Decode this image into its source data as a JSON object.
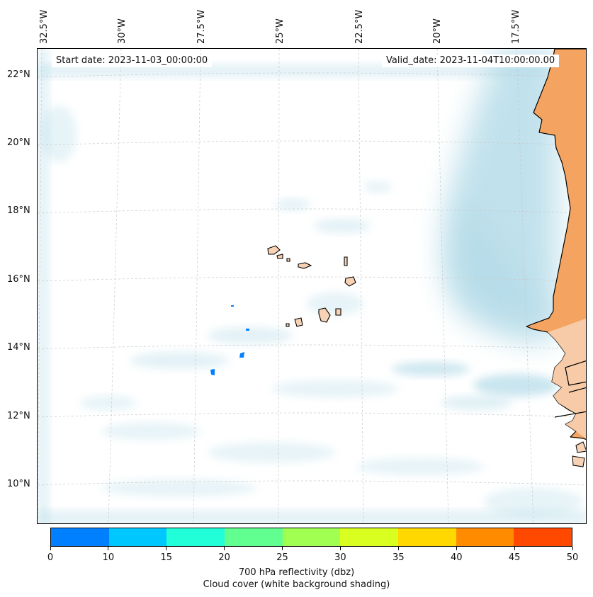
{
  "map": {
    "start_date": "Start date: 2023-11-03_00:00:00",
    "valid_date": "Valid_date: 2023-11-04T10:00:00.00",
    "lon_labels": [
      "32.5°W",
      "30°W",
      "27.5°W",
      "25°W",
      "22.5°W",
      "20°W",
      "17.5°W"
    ],
    "lat_labels": [
      "22°N",
      "20°N",
      "18°N",
      "16°N",
      "14°N",
      "12°N",
      "10°N"
    ],
    "land_color": "#f4a460",
    "cloud_color": "#add8e6",
    "reflectivity_color": "#0080ff"
  },
  "colorbar": {
    "ticks": [
      "0",
      "10",
      "15",
      "20",
      "25",
      "30",
      "35",
      "40",
      "45",
      "50"
    ],
    "colors": [
      "#0080ff",
      "#00c8ff",
      "#20ffd8",
      "#60ff90",
      "#a0ff50",
      "#d8ff20",
      "#ffd800",
      "#ff8c00",
      "#ff4800"
    ],
    "label": "700 hPa reflectivity (dbz)",
    "sublabel": "Cloud cover (white background shading)"
  }
}
